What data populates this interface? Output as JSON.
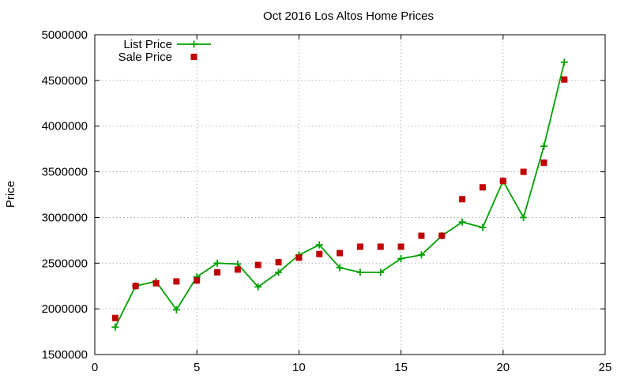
{
  "chart_data": {
    "type": "line",
    "title": "Oct 2016 Los Altos Home Prices",
    "xlabel": "",
    "ylabel": "Price",
    "xlim": [
      0,
      25
    ],
    "ylim": [
      1500000,
      5000000
    ],
    "xticks": [
      0,
      5,
      10,
      15,
      20,
      25
    ],
    "yticks": [
      1500000,
      2000000,
      2500000,
      3000000,
      3500000,
      4000000,
      4500000,
      5000000
    ],
    "grid": true,
    "legend_position": "top-left",
    "x": [
      1,
      2,
      3,
      4,
      5,
      6,
      7,
      8,
      9,
      10,
      11,
      12,
      13,
      14,
      15,
      16,
      17,
      18,
      19,
      20,
      21,
      22,
      23
    ],
    "series": [
      {
        "name": "List Price",
        "style": "linespoints",
        "marker": "plus",
        "color": "#00a000",
        "values": [
          1800000,
          2250000,
          2300000,
          1990000,
          2350000,
          2500000,
          2490000,
          2240000,
          2400000,
          2590000,
          2700000,
          2450000,
          2400000,
          2400000,
          2550000,
          2590000,
          2800000,
          2950000,
          2890000,
          3400000,
          3000000,
          3780000,
          4700000
        ]
      },
      {
        "name": "Sale Price",
        "style": "points",
        "marker": "square",
        "color": "#c00000",
        "values": [
          1900000,
          2250000,
          2280000,
          2300000,
          2310000,
          2400000,
          2430000,
          2480000,
          2510000,
          2560000,
          2600000,
          2610000,
          2680000,
          2680000,
          2680000,
          2800000,
          2800000,
          3200000,
          3330000,
          3400000,
          3500000,
          3600000,
          4510000
        ]
      }
    ]
  }
}
